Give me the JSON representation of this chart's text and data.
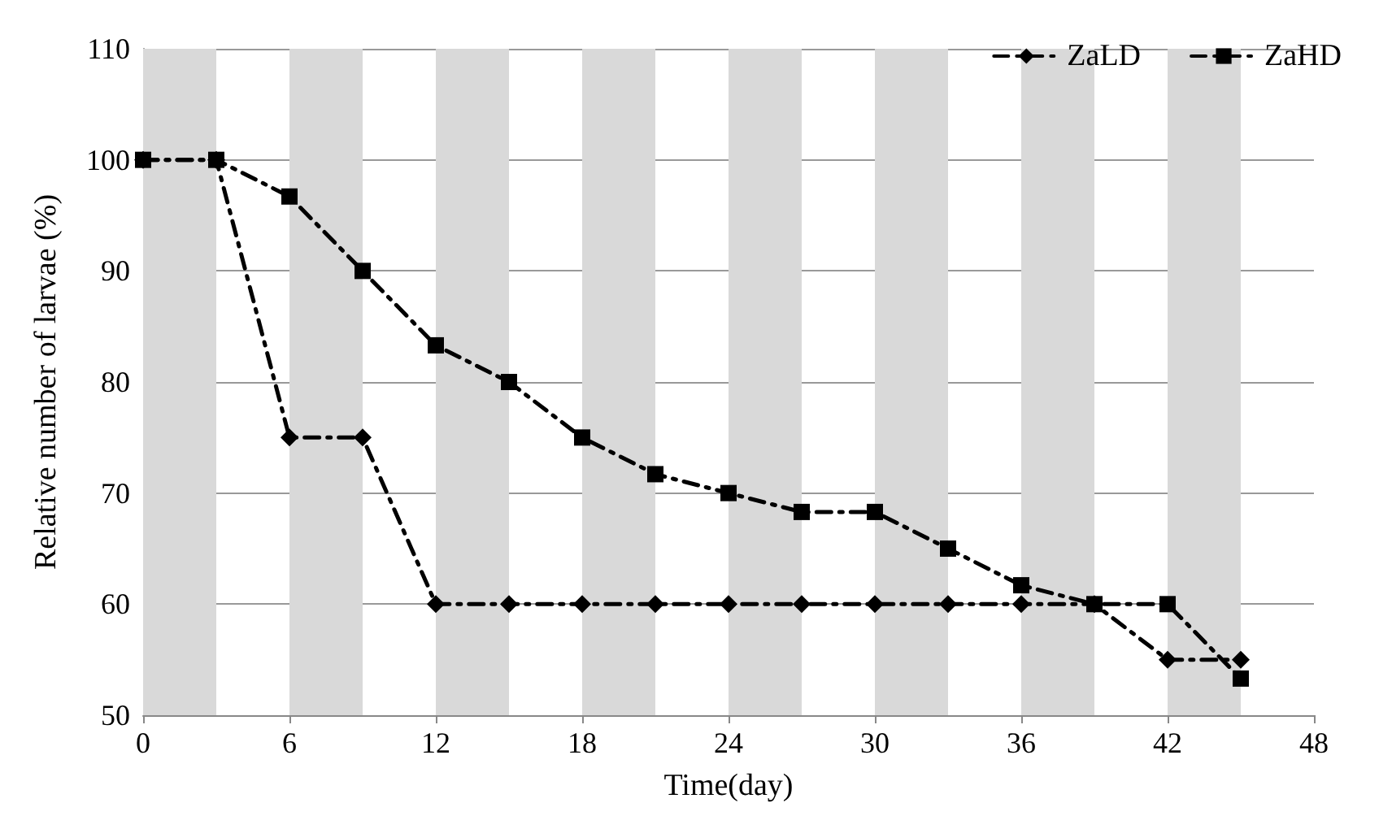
{
  "chart_data": {
    "type": "line",
    "xlabel": "Time(day)",
    "ylabel": "Relative number of larvae (%)",
    "x": [
      0,
      3,
      6,
      9,
      12,
      15,
      18,
      21,
      24,
      27,
      30,
      33,
      36,
      39,
      42,
      45
    ],
    "series": [
      {
        "name": "ZaLD",
        "color": "#000000",
        "marker": "diamond",
        "values": [
          100,
          100,
          75,
          75,
          60,
          60,
          60,
          60,
          60,
          60,
          60,
          60,
          60,
          60,
          55,
          55
        ]
      },
      {
        "name": "ZaHD",
        "color": "#000000",
        "marker": "square",
        "values": [
          100,
          100,
          96.7,
          90,
          83.3,
          80,
          75,
          71.7,
          70,
          68.3,
          68.3,
          65,
          61.7,
          60,
          60,
          53.3
        ]
      }
    ],
    "xlim": [
      0,
      48
    ],
    "xticks": [
      0,
      6,
      12,
      18,
      24,
      30,
      36,
      42,
      48
    ],
    "ylim": [
      50,
      110
    ],
    "yticks": [
      50,
      60,
      70,
      80,
      90,
      100,
      110
    ],
    "bands": [
      {
        "axis": "x",
        "from": 0,
        "to": 3,
        "color": "#d9d9d9"
      },
      {
        "axis": "x",
        "from": 6,
        "to": 9,
        "color": "#d9d9d9"
      },
      {
        "axis": "x",
        "from": 12,
        "to": 15,
        "color": "#d9d9d9"
      },
      {
        "axis": "x",
        "from": 18,
        "to": 21,
        "color": "#d9d9d9"
      },
      {
        "axis": "x",
        "from": 24,
        "to": 27,
        "color": "#d9d9d9"
      },
      {
        "axis": "x",
        "from": 30,
        "to": 33,
        "color": "#d9d9d9"
      },
      {
        "axis": "x",
        "from": 36,
        "to": 39,
        "color": "#d9d9d9"
      },
      {
        "axis": "x",
        "from": 42,
        "to": 45,
        "color": "#d9d9d9"
      }
    ],
    "grid": "y",
    "legend": "top right",
    "line_style": "dashed"
  }
}
